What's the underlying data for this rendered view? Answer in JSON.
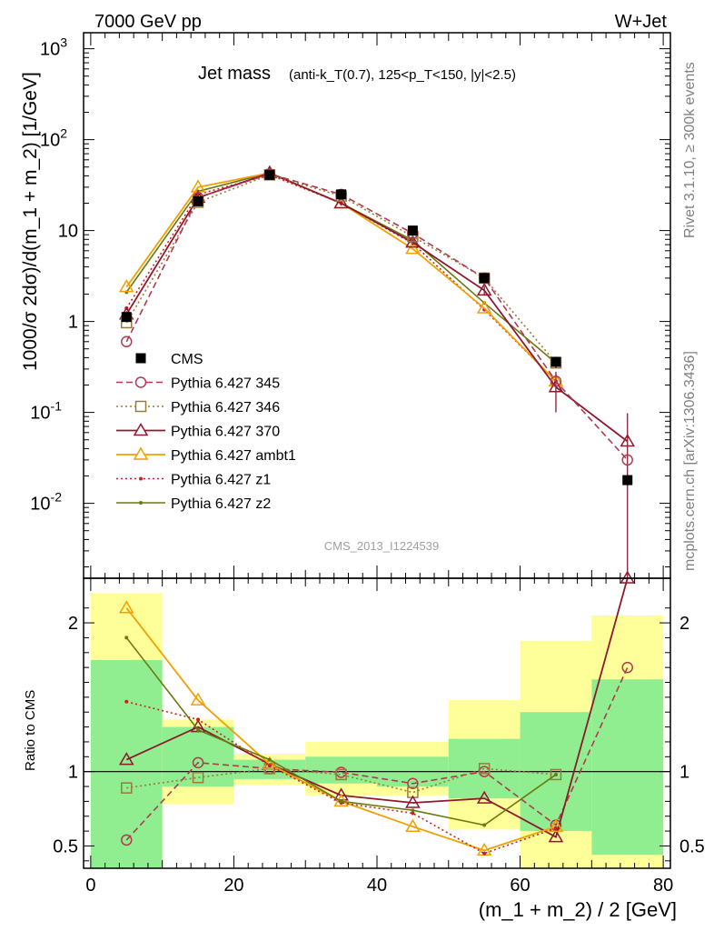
{
  "header": {
    "left": "7000 GeV pp",
    "right": "W+Jet"
  },
  "side_labels": {
    "rivet": "Rivet 3.1.10, ≥ 300k events",
    "mcplots": "mcplots.cern.ch [arXiv:1306.3436]"
  },
  "colors": {
    "data": "#000000",
    "p345": "#b03a50",
    "p346": "#9a7a3a",
    "p370": "#8b1a2e",
    "ambt1": "#f0a000",
    "z1": "#cc2020",
    "z2": "#6b7a10",
    "band_inner": "#90ee90",
    "band_outer": "#ffff99"
  },
  "chart_data": [
    {
      "type": "line",
      "panel": "main",
      "title_main": "Jet mass",
      "title_detail": "(anti-k_T(0.7), 125<p_T<150, |y|<2.5)",
      "watermark": "CMS_2013_I1224539",
      "ylabel": "1000/σ 2dσ)/d(m_1 + m_2) [1/GeV]",
      "yscale": "log",
      "ylim": [
        0.0015,
        1500
      ],
      "xlim": [
        -1,
        81
      ],
      "y_tick_labels": [
        "10^{-2}",
        "10^{-1}",
        "1",
        "10",
        "10^{2}",
        "10^{3}"
      ],
      "x": [
        5,
        15,
        25,
        35,
        45,
        55,
        65,
        75
      ],
      "series": [
        {
          "name": "CMS",
          "key": "data",
          "style": "data",
          "values": [
            1.12,
            21,
            41,
            25,
            10,
            3.0,
            0.36,
            0.018
          ],
          "errors": [
            0.1,
            1.5,
            2,
            1.5,
            0.6,
            0.25,
            0.05,
            0.0
          ]
        },
        {
          "name": "Pythia 6.427 345",
          "key": "p345",
          "style": "circle-dash",
          "values": [
            0.6,
            23,
            42,
            25,
            9.3,
            3.0,
            0.22,
            0.03
          ]
        },
        {
          "name": "Pythia 6.427 346",
          "key": "p346",
          "style": "square-dot",
          "values": [
            0.97,
            20.5,
            41,
            24,
            8.6,
            3.0,
            0.35,
            null
          ]
        },
        {
          "name": "Pythia 6.427 370",
          "key": "p370",
          "style": "triangle-solid",
          "values": [
            1.2,
            23,
            43,
            20,
            7.4,
            2.2,
            0.19,
            0.048
          ],
          "errors": [
            0.1,
            1.5,
            2,
            1.2,
            0.5,
            0.25,
            0.09,
            0.05
          ]
        },
        {
          "name": "Pythia 6.427 ambt1",
          "key": "ambt1",
          "style": "triangle-solid-light",
          "values": [
            2.4,
            30,
            43,
            20,
            6.3,
            1.4,
            0.22,
            null
          ]
        },
        {
          "name": "Pythia 6.427 z1",
          "key": "z1",
          "style": "dot-dot",
          "values": [
            1.4,
            25,
            41,
            20,
            7.2,
            1.35,
            0.22,
            null
          ]
        },
        {
          "name": "Pythia 6.427 z2",
          "key": "z2",
          "style": "dot-solid",
          "values": [
            2.1,
            27,
            43,
            20,
            7.8,
            1.6,
            0.35,
            null
          ]
        }
      ]
    },
    {
      "type": "line",
      "panel": "ratio",
      "ylabel": "Ratio to CMS",
      "xlabel": "(m_1 + m_2) / 2 [GeV]",
      "ylim": [
        0.35,
        2.3
      ],
      "xlim": [
        -1,
        81
      ],
      "x_ticks": [
        0,
        20,
        40,
        60,
        80
      ],
      "y_ticks": [
        0.5,
        1,
        2
      ],
      "x": [
        5,
        15,
        25,
        35,
        45,
        55,
        65,
        75
      ],
      "bin_edges": [
        0,
        10,
        20,
        30,
        40,
        50,
        60,
        70,
        80
      ],
      "band_inner": [
        [
          0.35,
          1.75
        ],
        [
          0.9,
          1.3
        ],
        [
          0.95,
          1.08
        ],
        [
          0.92,
          1.1
        ],
        [
          0.9,
          1.1
        ],
        [
          0.82,
          1.22
        ],
        [
          0.6,
          1.4
        ],
        [
          0.44,
          1.62
        ]
      ],
      "band_outer": [
        [
          0.35,
          2.2
        ],
        [
          0.78,
          1.35
        ],
        [
          0.91,
          1.12
        ],
        [
          0.84,
          1.2
        ],
        [
          0.84,
          1.2
        ],
        [
          0.61,
          1.48
        ],
        [
          0.35,
          1.88
        ],
        [
          0.35,
          2.05
        ]
      ],
      "series": [
        {
          "name": "Pythia 6.427 345",
          "key": "p345",
          "style": "circle-dash",
          "values": [
            0.54,
            1.06,
            1.02,
            0.995,
            0.92,
            1.0,
            0.64,
            1.7
          ]
        },
        {
          "name": "Pythia 6.427 346",
          "key": "p346",
          "style": "square-dot",
          "values": [
            0.89,
            0.96,
            1.02,
            0.98,
            0.86,
            1.02,
            0.98,
            null
          ]
        },
        {
          "name": "Pythia 6.427 370",
          "key": "p370",
          "style": "triangle-solid",
          "values": [
            1.08,
            1.3,
            1.05,
            0.84,
            0.79,
            0.82,
            0.56,
            2.8
          ]
        },
        {
          "name": "Pythia 6.427 ambt1",
          "key": "ambt1",
          "style": "triangle-solid-light",
          "values": [
            2.1,
            1.48,
            1.05,
            0.8,
            0.63,
            0.47,
            0.63,
            null
          ]
        },
        {
          "name": "Pythia 6.427 z1",
          "key": "z1",
          "style": "dot-dot",
          "values": [
            1.47,
            1.35,
            1.04,
            0.79,
            0.72,
            0.45,
            0.62,
            null
          ]
        },
        {
          "name": "Pythia 6.427 z2",
          "key": "z2",
          "style": "dot-solid",
          "values": [
            1.9,
            1.28,
            1.08,
            0.8,
            0.74,
            0.64,
            0.98,
            null
          ]
        }
      ]
    }
  ]
}
